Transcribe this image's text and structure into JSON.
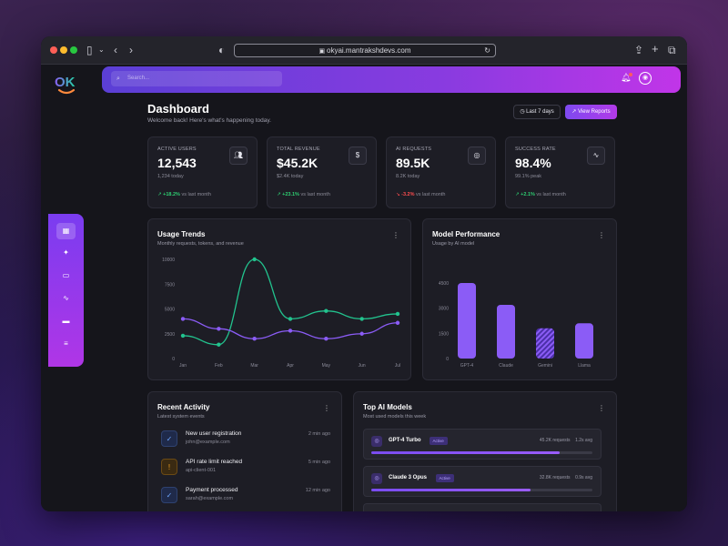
{
  "browser": {
    "url": "okyai.mantrakshdevs.com",
    "traffic_colors": [
      "#fe5f57",
      "#febc2e",
      "#28c840"
    ]
  },
  "topbar": {
    "search_placeholder": "Search...",
    "icons": [
      "bell-icon",
      "user-circle-icon"
    ]
  },
  "logo": {
    "text": "OK"
  },
  "sidebar": {
    "items": [
      {
        "name": "grid-icon",
        "glyph": "▦"
      },
      {
        "name": "wand-icon",
        "glyph": "✦"
      },
      {
        "name": "robot-icon",
        "glyph": "▭"
      },
      {
        "name": "activity-icon",
        "glyph": "∿"
      },
      {
        "name": "card-icon",
        "glyph": "▬"
      },
      {
        "name": "sliders-icon",
        "glyph": "≡"
      }
    ]
  },
  "header": {
    "title": "Dashboard",
    "subtitle": "Welcome back! Here's what's happening today.",
    "range_label": "Last 7 days",
    "reports_label": "View Reports"
  },
  "stats": [
    {
      "label": "ACTIVE USERS",
      "value": "12,543",
      "sub": "1,234 today",
      "trend": "+18.2%",
      "trend_text": "vs last month",
      "trend_dir": "up",
      "icon": "users-icon"
    },
    {
      "label": "TOTAL REVENUE",
      "value": "$45.2K",
      "sub": "$2.4K today",
      "trend": "+23.1%",
      "trend_text": "vs last month",
      "trend_dir": "up",
      "icon": "dollar-icon"
    },
    {
      "label": "AI REQUESTS",
      "value": "89.5K",
      "sub": "8.2K today",
      "trend": "-3.2%",
      "trend_text": "vs last month",
      "trend_dir": "down",
      "icon": "brain-icon"
    },
    {
      "label": "SUCCESS RATE",
      "value": "98.4%",
      "sub": "99.1% peak",
      "trend": "+2.1%",
      "trend_text": "vs last month",
      "trend_dir": "up",
      "icon": "pulse-icon"
    }
  ],
  "colors": {
    "up": "#2ecc71",
    "down": "#ff4d4f",
    "teal_series": "#22c38e",
    "purple_series": "#8b5cf6"
  },
  "usage": {
    "title": "Usage Trends",
    "subtitle": "Monthly requests, tokens, and revenue"
  },
  "model_perf": {
    "title": "Model Performance",
    "subtitle": "Usage by AI model"
  },
  "chart_data": [
    {
      "type": "line",
      "categories": [
        "Jan",
        "Feb",
        "Mar",
        "Apr",
        "May",
        "Jun",
        "Jul"
      ],
      "series": [
        {
          "values": [
            2300,
            1400,
            10000,
            4000,
            4800,
            4000,
            4500
          ]
        },
        {
          "values": [
            4000,
            3000,
            2000,
            2800,
            2000,
            2500,
            3600
          ]
        }
      ],
      "yticks": [
        0,
        2500,
        5000,
        7500,
        10000
      ],
      "ylim": [
        0,
        10000
      ]
    },
    {
      "type": "bar",
      "categories": [
        "GPT-4",
        "Claude",
        "Gemini",
        "Llama"
      ],
      "values": [
        4500,
        3200,
        1800,
        2100
      ],
      "yticks": [
        0,
        1500,
        3000,
        4500
      ],
      "ylim": [
        0,
        6000
      ]
    }
  ],
  "activity": {
    "title": "Recent Activity",
    "subtitle": "Latest system events",
    "items": [
      {
        "title": "New user registration",
        "sub": "john@example.com",
        "time": "2 min ago",
        "icon": "check-circle-icon",
        "kind": "ok"
      },
      {
        "title": "API rate limit reached",
        "sub": "api-client-001",
        "time": "5 min ago",
        "icon": "alert-circle-icon",
        "kind": "warn"
      },
      {
        "title": "Payment processed",
        "sub": "sarah@example.com",
        "time": "12 min ago",
        "icon": "check-circle-icon",
        "kind": "ok"
      }
    ]
  },
  "top_models": {
    "title": "Top AI Models",
    "subtitle": "Most used models this week",
    "items": [
      {
        "name": "GPT-4 Turbo",
        "badge": "Active",
        "requests": "45.2K requests",
        "latency": "1.2s avg",
        "share": 0.85
      },
      {
        "name": "Claude 3 Opus",
        "badge": "Active",
        "requests": "32.8K requests",
        "latency": "0.9s avg",
        "share": 0.72
      }
    ]
  }
}
